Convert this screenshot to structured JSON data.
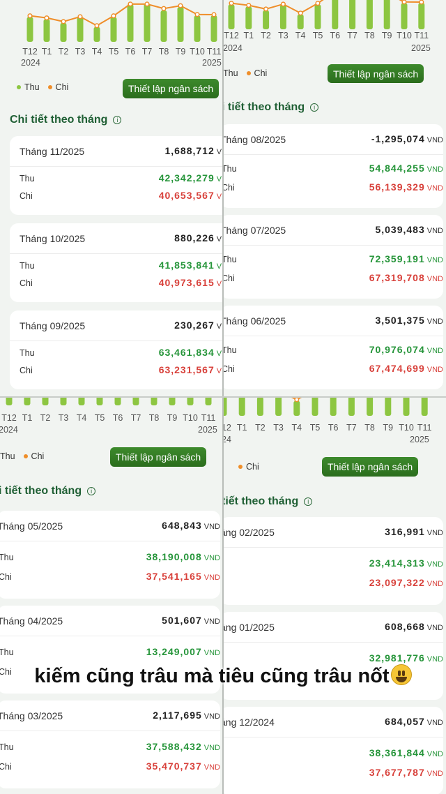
{
  "caption": "kiếm cũng trâu mà tiêu cũng trâu nốt",
  "colors": {
    "income": "#26953a",
    "expense": "#d8413b",
    "bar": "#8dc641",
    "line": "#ef8e2a",
    "button": "#2f7323",
    "title": "#1f5f34"
  },
  "legend": {
    "income": "Thu",
    "expense": "Chi"
  },
  "budget_button": "Thiết lập ngân sách",
  "section_title": "Chi tiết theo tháng",
  "unit": "VND",
  "months_axis": [
    "T12",
    "T1",
    "T2",
    "T3",
    "T4",
    "T5",
    "T6",
    "T7",
    "T8",
    "T9",
    "T10",
    "T11"
  ],
  "panels": [
    {
      "year_start": "2024",
      "year_end": "2025",
      "title": "Chi tiết theo tháng",
      "cards": [
        {
          "month": "Tháng 11/2025",
          "net": "1,688,712",
          "income_label": "Thu",
          "income": "42,342,279",
          "expense_label": "Chi",
          "expense": "40,653,567"
        },
        {
          "month": "Tháng 10/2025",
          "net": "880,226",
          "income_label": "Thu",
          "income": "41,853,841",
          "expense_label": "Chi",
          "expense": "40,973,615"
        },
        {
          "month": "Tháng 09/2025",
          "net": "230,267",
          "income_label": "Thu",
          "income": "63,461,834",
          "expense_label": "Chi",
          "expense": "63,231,567"
        }
      ]
    },
    {
      "year_start": "2024",
      "year_end": "2025",
      "title": "i tiết theo tháng",
      "cards": [
        {
          "month": "Tháng 08/2025",
          "net": "-1,295,074",
          "income_label": "Thu",
          "income": "54,844,255",
          "expense_label": "Chi",
          "expense": "56,139,329"
        },
        {
          "month": "Tháng 07/2025",
          "net": "5,039,483",
          "income_label": "Thu",
          "income": "72,359,191",
          "expense_label": "Chi",
          "expense": "67,319,708"
        },
        {
          "month": "Tháng 06/2025",
          "net": "3,501,375",
          "income_label": "Thu",
          "income": "70,976,074",
          "expense_label": "Chi",
          "expense": "67,474,699"
        }
      ]
    },
    {
      "year_start": "2024",
      "year_end": "2025",
      "title": "i tiết theo tháng",
      "cards": [
        {
          "month": "Tháng 05/2025",
          "net": "648,843",
          "income_label": "Thu",
          "income": "38,190,008",
          "expense_label": "Chi",
          "expense": "37,541,165"
        },
        {
          "month": "Tháng 04/2025",
          "net": "501,607",
          "income_label": "Thu",
          "income": "13,249,007",
          "expense_label": "Chi",
          "expense": ""
        },
        {
          "month": "Tháng 03/2025",
          "net": "2,117,695",
          "income_label": "Thu",
          "income": "37,588,432",
          "expense_label": "Chi",
          "expense": "35,470,737"
        }
      ]
    },
    {
      "year_start": "24",
      "year_end": "2025",
      "title": "tiết theo tháng",
      "cards": [
        {
          "month": "áng 02/2025",
          "net": "316,991",
          "income_label": "",
          "income": "23,414,313",
          "expense_label": "",
          "expense": "23,097,322"
        },
        {
          "month": "áng 01/2025",
          "net": "608,668",
          "income_label": "",
          "income": "32,981,776",
          "expense_label": "",
          "expense": ""
        },
        {
          "month": "áng 12/2024",
          "net": "684,057",
          "income_label": "",
          "income": "38,361,844",
          "expense_label": "",
          "expense": "37,677,787"
        }
      ]
    }
  ],
  "chart_data": {
    "type": "bar",
    "categories": [
      "T12",
      "T1",
      "T2",
      "T3",
      "T4",
      "T5",
      "T6",
      "T7",
      "T8",
      "T9",
      "T10",
      "T11"
    ],
    "series": [
      {
        "name": "Thu",
        "values": [
          38361844,
          32981776,
          23414313,
          37588432,
          13249007,
          38190008,
          70976074,
          72359191,
          54844255,
          63461834,
          41853841,
          42342279
        ]
      },
      {
        "name": "Chi",
        "values": [
          37677787,
          32373108,
          23097322,
          35470737,
          12747400,
          37541165,
          67474699,
          67319708,
          56139329,
          63231567,
          40973615,
          40653567
        ]
      }
    ]
  }
}
